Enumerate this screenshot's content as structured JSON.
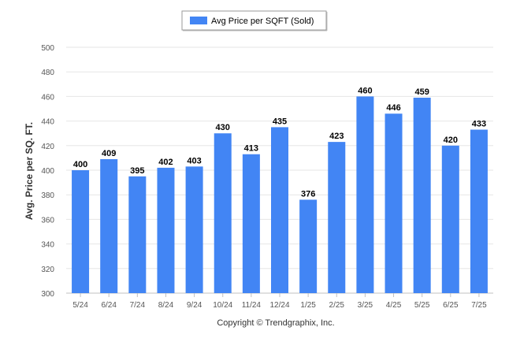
{
  "chart_data": {
    "type": "bar",
    "categories": [
      "5/24",
      "6/24",
      "7/24",
      "8/24",
      "9/24",
      "10/24",
      "11/24",
      "12/24",
      "1/25",
      "2/25",
      "3/25",
      "4/25",
      "5/25",
      "6/25",
      "7/25"
    ],
    "series": [
      {
        "name": "Avg Price per SQFT (Sold)",
        "values": [
          400,
          409,
          395,
          402,
          403,
          430,
          413,
          435,
          376,
          423,
          460,
          446,
          459,
          420,
          433
        ]
      }
    ],
    "ylabel": "Avg. Price per SQ. FT.",
    "xlabel": "",
    "ylim": [
      300,
      500
    ],
    "yticks": [
      300,
      320,
      340,
      360,
      380,
      400,
      420,
      440,
      460,
      480,
      500
    ],
    "grid": true,
    "legend_position": "top-center",
    "bar_color": "#4285f4",
    "data_labels": true
  },
  "credit": "Copyright © Trendgraphix, Inc."
}
